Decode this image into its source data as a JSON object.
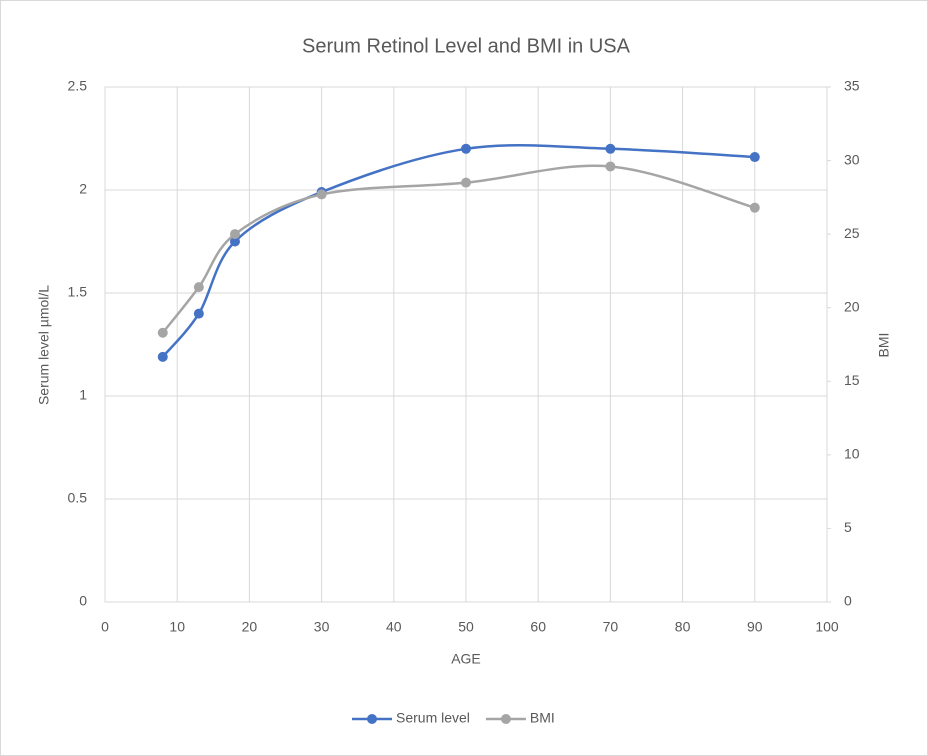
{
  "chart_data": {
    "type": "line",
    "title": "Serum Retinol Level and BMI in USA",
    "x_label": "AGE",
    "y_label": "Serum level µmol/L",
    "y2_label": "BMI",
    "x": [
      8,
      13,
      18,
      30,
      50,
      70,
      90
    ],
    "series": [
      {
        "name": "Serum level",
        "color": "#4472c4",
        "values": [
          1.19,
          1.4,
          1.75,
          1.99,
          2.2,
          2.2,
          2.16
        ],
        "axis": "y"
      },
      {
        "name": "BMI",
        "color": "#a5a5a5",
        "values": [
          18.3,
          21.4,
          25.0,
          27.7,
          28.5,
          29.6,
          26.8
        ],
        "axis": "y2"
      }
    ],
    "xlim": [
      0,
      100
    ],
    "xticks": [
      0,
      10,
      20,
      30,
      40,
      50,
      60,
      70,
      80,
      90,
      100
    ],
    "ylim": [
      0,
      2.5
    ],
    "yticks": [
      0,
      0.5,
      1,
      1.5,
      2,
      2.5
    ],
    "y2lim": [
      0,
      35
    ],
    "y2ticks": [
      0,
      5,
      10,
      15,
      20,
      25,
      30,
      35
    ],
    "grid": true,
    "smooth": true,
    "legend": "bottom"
  }
}
